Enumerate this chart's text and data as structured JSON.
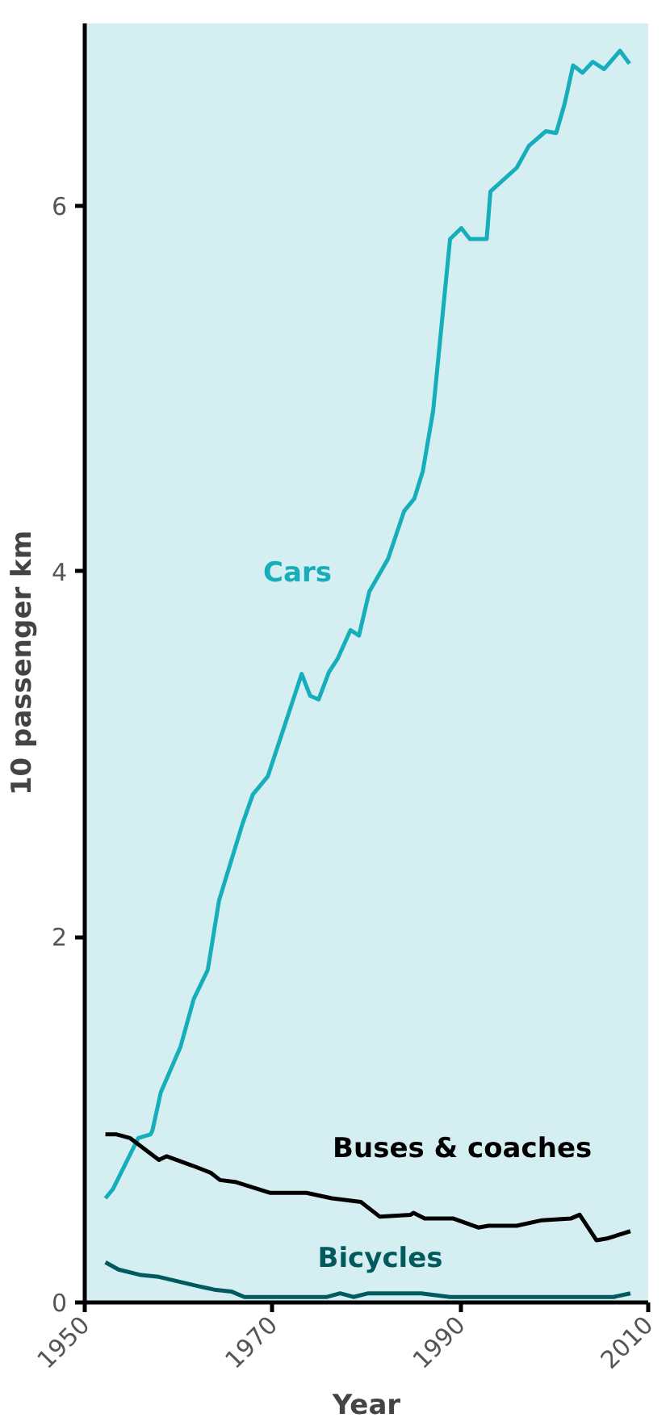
{
  "chart_data": {
    "type": "line",
    "xlabel": "Year",
    "ylabel": "10 passenger km",
    "xlim": [
      1950,
      2010
    ],
    "ylim": [
      0,
      7
    ],
    "xticks": [
      1950,
      1970,
      1990,
      2010
    ],
    "yticks": [
      0,
      2,
      4,
      6
    ],
    "grid": false,
    "marker": "none",
    "line_style": "solid",
    "series": [
      {
        "name": "Cars",
        "color": "#16aebb",
        "x": [
          1952.2,
          1953,
          1955.7,
          1957,
          1957.2,
          1958.1,
          1960.2,
          1961.6,
          1963.1,
          1964.3,
          1966.8,
          1967.9,
          1969.5,
          1972.2,
          1973.1,
          1974,
          1974.9,
          1976,
          1976.9,
          1978.3,
          1979.2,
          1980.3,
          1982.3,
          1984,
          1985.1,
          1986,
          1987.1,
          1988.9,
          1990.1,
          1991,
          1992.8,
          1993.2,
          1996,
          1997.3,
          1999.1,
          2000.2,
          2001.1,
          2002,
          2003,
          2004.1,
          2005.3,
          2007,
          2008
        ],
        "values": [
          0.57,
          0.62,
          0.9,
          0.92,
          0.94,
          1.15,
          1.4,
          1.66,
          1.82,
          2.2,
          2.62,
          2.78,
          2.88,
          3.3,
          3.44,
          3.32,
          3.3,
          3.45,
          3.52,
          3.68,
          3.65,
          3.89,
          4.07,
          4.33,
          4.4,
          4.55,
          4.88,
          5.82,
          5.88,
          5.82,
          5.82,
          6.08,
          6.21,
          6.33,
          6.41,
          6.4,
          6.56,
          6.77,
          6.73,
          6.79,
          6.75,
          6.85,
          6.78
        ]
      },
      {
        "name": "Buses & coaches",
        "color": "#000000",
        "x": [
          1952.2,
          1953.4,
          1954.8,
          1957.9,
          1958.7,
          1961.4,
          1963.4,
          1964.4,
          1966,
          1969.7,
          1973.6,
          1976.3,
          1979.4,
          1981.4,
          1984.7,
          1985,
          1986.2,
          1989.2,
          1991.9,
          1993,
          1996,
          1998.7,
          2001.8,
          2002.7,
          2004.5,
          2005.6,
          2008.1
        ],
        "values": [
          0.92,
          0.92,
          0.9,
          0.78,
          0.8,
          0.75,
          0.71,
          0.67,
          0.66,
          0.6,
          0.6,
          0.57,
          0.55,
          0.47,
          0.48,
          0.49,
          0.46,
          0.46,
          0.41,
          0.42,
          0.42,
          0.45,
          0.46,
          0.48,
          0.34,
          0.35,
          0.39
        ]
      },
      {
        "name": "Bicycles",
        "color": "#005a5e",
        "x": [
          1952.2,
          1953.6,
          1956,
          1957.9,
          1962,
          1963.8,
          1965.6,
          1967,
          1975.8,
          1977.2,
          1978.6,
          1980.2,
          1985.8,
          1988.9,
          2006.3,
          2008.1
        ],
        "values": [
          0.22,
          0.18,
          0.15,
          0.14,
          0.09,
          0.07,
          0.06,
          0.03,
          0.03,
          0.05,
          0.03,
          0.05,
          0.05,
          0.03,
          0.03,
          0.05
        ]
      }
    ]
  }
}
